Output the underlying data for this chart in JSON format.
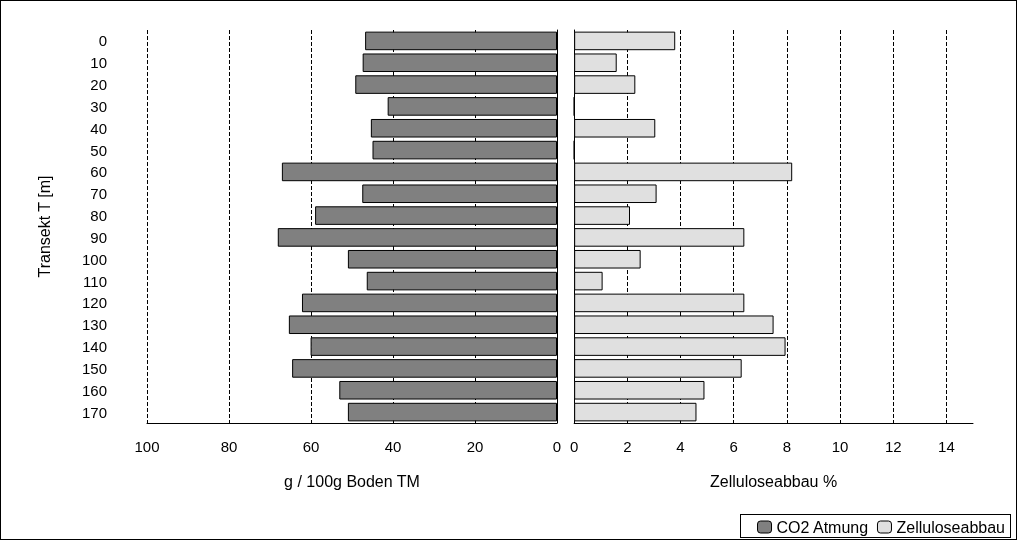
{
  "chart_data": [
    {
      "type": "bar",
      "orientation": "horizontal",
      "ylabel": "Transekt T [m]",
      "xlabel": "g / 100g Boden TM",
      "categories": [
        "0",
        "10",
        "20",
        "30",
        "40",
        "50",
        "60",
        "70",
        "80",
        "90",
        "100",
        "110",
        "120",
        "130",
        "140",
        "150",
        "160",
        "170"
      ],
      "series": [
        {
          "name": "CO2 Atmung",
          "color": "#808080",
          "values": [
            46.8,
            47.4,
            49.2,
            41.3,
            45.4,
            45.0,
            67.1,
            47.5,
            59.0,
            68.1,
            51.0,
            46.4,
            62.2,
            65.4,
            60.1,
            64.6,
            53.1,
            51.0
          ]
        }
      ],
      "xlim": [
        100,
        0
      ],
      "xticks": [
        100,
        80,
        60,
        40,
        20,
        0
      ],
      "grid": "x",
      "legend": "bottom right"
    },
    {
      "type": "bar",
      "orientation": "horizontal",
      "xlabel": "Zelluloseabbau %",
      "categories": [
        "0",
        "10",
        "20",
        "30",
        "40",
        "50",
        "60",
        "70",
        "80",
        "90",
        "100",
        "110",
        "120",
        "130",
        "140",
        "150",
        "160",
        "170"
      ],
      "series": [
        {
          "name": "Zelluloseabbau",
          "color": "#e0e0e0",
          "values": [
            3.8,
            1.6,
            2.3,
            0,
            3.05,
            0,
            8.2,
            3.1,
            2.1,
            6.4,
            2.5,
            1.07,
            6.4,
            7.5,
            7.95,
            6.3,
            4.9,
            4.6
          ]
        }
      ],
      "xlim": [
        0,
        15
      ],
      "xticks": [
        0,
        2,
        4,
        6,
        8,
        10,
        12,
        14
      ],
      "grid": "x",
      "tick_labels": "x",
      "legend": "bottom right"
    }
  ]
}
